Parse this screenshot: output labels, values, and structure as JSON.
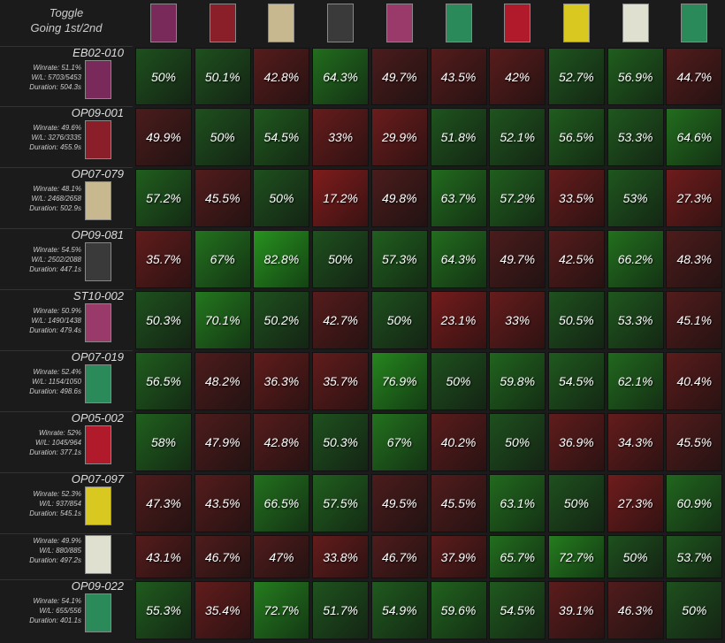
{
  "header": {
    "title": "Toggle",
    "subtitle": "Going 1st/2nd"
  },
  "rows": [
    {
      "code": "EB02-010",
      "winrate": "Winrate: 51.1%",
      "wl": "W/L: 5703/5453",
      "duration": "Duration: 504.3s",
      "cells": [
        "50%",
        "50.1%",
        "42.8%",
        "64.3%",
        "49.7%",
        "43.5%",
        "42%",
        "52.7%",
        "56.9%",
        "44.7%"
      ]
    },
    {
      "code": "OP09-001",
      "winrate": "Winrate: 49.6%",
      "wl": "W/L: 3276/3335",
      "duration": "Duration: 455.9s",
      "cells": [
        "49.9%",
        "50%",
        "54.5%",
        "33%",
        "29.9%",
        "51.8%",
        "52.1%",
        "56.5%",
        "53.3%",
        "64.6%"
      ]
    },
    {
      "code": "OP07-079",
      "winrate": "Winrate: 48.1%",
      "wl": "W/L: 2468/2658",
      "duration": "Duration: 502.9s",
      "cells": [
        "57.2%",
        "45.5%",
        "50%",
        "17.2%",
        "49.8%",
        "63.7%",
        "57.2%",
        "33.5%",
        "53%",
        "27.3%"
      ]
    },
    {
      "code": "OP09-081",
      "winrate": "Winrate: 54.5%",
      "wl": "W/L: 2502/2088",
      "duration": "Duration: 447.1s",
      "cells": [
        "35.7%",
        "67%",
        "82.8%",
        "50%",
        "57.3%",
        "64.3%",
        "49.7%",
        "42.5%",
        "66.2%",
        "48.3%"
      ]
    },
    {
      "code": "ST10-002",
      "winrate": "Winrate: 50.9%",
      "wl": "W/L: 1490/1438",
      "duration": "Duration: 479.4s",
      "cells": [
        "50.3%",
        "70.1%",
        "50.2%",
        "42.7%",
        "50%",
        "23.1%",
        "33%",
        "50.5%",
        "53.3%",
        "45.1%"
      ]
    },
    {
      "code": "OP07-019",
      "winrate": "Winrate: 52.4%",
      "wl": "W/L: 1154/1050",
      "duration": "Duration: 498.6s",
      "cells": [
        "56.5%",
        "48.2%",
        "36.3%",
        "35.7%",
        "76.9%",
        "50%",
        "59.8%",
        "54.5%",
        "62.1%",
        "40.4%"
      ]
    },
    {
      "code": "OP05-002",
      "winrate": "Winrate: 52%",
      "wl": "W/L: 1045/964",
      "duration": "Duration: 377.1s",
      "cells": [
        "58%",
        "47.9%",
        "42.8%",
        "50.3%",
        "67%",
        "40.2%",
        "50%",
        "36.9%",
        "34.3%",
        "45.5%"
      ]
    },
    {
      "code": "OP07-097",
      "winrate": "Winrate: 52.3%",
      "wl": "W/L: 937/854",
      "duration": "Duration: 545.1s",
      "cells": [
        "47.3%",
        "43.5%",
        "66.5%",
        "57.5%",
        "49.5%",
        "45.5%",
        "63.1%",
        "50%",
        "27.3%",
        "60.9%"
      ]
    },
    {
      "winrate": "Winrate: 49.9%",
      "wl": "W/L: 880/885",
      "duration": "Duration: 497.2s",
      "cells": [
        "43.1%",
        "46.7%",
        "47%",
        "33.8%",
        "46.7%",
        "37.9%",
        "65.7%",
        "72.7%",
        "50%",
        "53.7%"
      ]
    },
    {
      "code": "OP09-022",
      "winrate": "Winrate: 54.1%",
      "wl": "W/L: 655/556",
      "duration": "Duration: 401.1s",
      "cells": [
        "55.3%",
        "35.4%",
        "72.7%",
        "51.7%",
        "54.9%",
        "59.6%",
        "54.5%",
        "39.1%",
        "46.3%",
        "50%"
      ]
    }
  ]
}
